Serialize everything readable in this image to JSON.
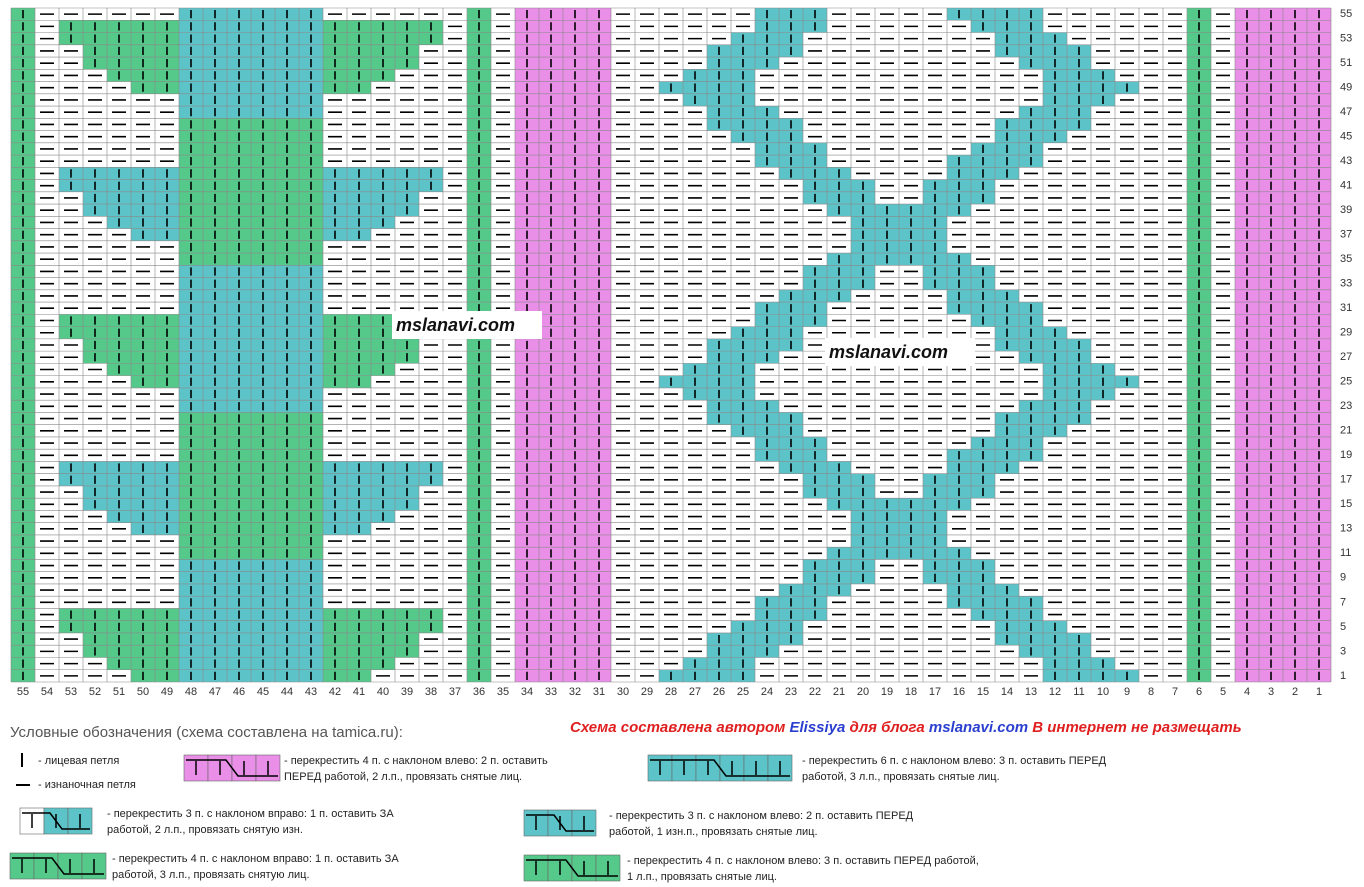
{
  "chart": {
    "column_numbers": [
      55,
      54,
      53,
      52,
      51,
      50,
      49,
      48,
      47,
      46,
      45,
      44,
      43,
      42,
      41,
      40,
      39,
      38,
      37,
      36,
      35,
      34,
      33,
      32,
      31,
      30,
      29,
      28,
      27,
      26,
      25,
      24,
      23,
      22,
      21,
      20,
      19,
      18,
      17,
      16,
      15,
      14,
      13,
      12,
      11,
      10,
      9,
      8,
      7,
      6,
      5,
      4,
      3,
      2,
      1
    ],
    "row_numbers": [
      1,
      3,
      5,
      7,
      9,
      11,
      13,
      15,
      17,
      19,
      21,
      23,
      25,
      27,
      29,
      31,
      33,
      35,
      37,
      39,
      41,
      43,
      45,
      47,
      49,
      51,
      53,
      55
    ],
    "watermarks": [
      "mslanavi.com",
      "mslanavi.com"
    ]
  },
  "legend": {
    "title": "Условные обозначения (схема составлена на tamica.ru):",
    "notice": [
      "Схема составлена автором ",
      "Elissiya",
      " для блога ",
      "mslanavi.com",
      " В интернет не размещать"
    ],
    "knit": "- лицевая петля",
    "purl": "- изнаночная петля",
    "items": [
      [
        "- перекрестить 4 п. с наклоном влево: 2 п. оставить",
        "ПЕРЕД работой, 2 л.п., провязать снятые лиц."
      ],
      [
        "- перекрестить 6 п. с наклоном влево: 3 п. оставить ПЕРЕД",
        "работой, 3 л.п., провязать снятые лиц."
      ],
      [
        "- перекрестить 3 п. с наклоном вправо: 1 п. оставить ЗА",
        "работой, 2 л.п., провязать снятую изн."
      ],
      [
        "- перекрестить 3 п. с наклоном влево: 2 п. оставить ПЕРЕД",
        "работой, 1 изн.п., провязать снятые лиц."
      ],
      [
        "- перекрестить 4 п. с наклоном вправо: 1 п. оставить ЗА",
        "работой, 3 л.п., провязать снятую лиц."
      ],
      [
        "- перекрестить 4 п. с наклоном влево: 3 п. оставить ПЕРЕД работой,",
        "1 л.п., провязать снятые лиц."
      ]
    ]
  }
}
